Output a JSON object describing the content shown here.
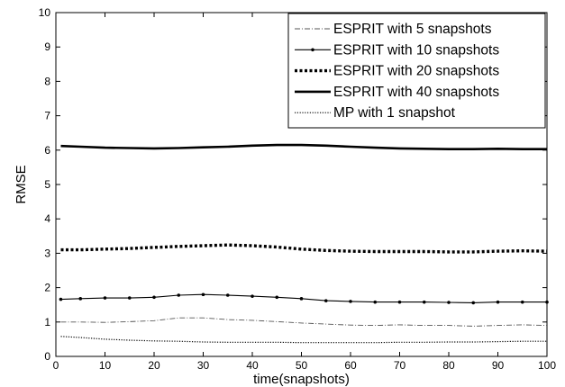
{
  "chart_data": {
    "type": "line",
    "title": "",
    "xlabel": "time(snapshots)",
    "ylabel": "RMSE",
    "xlim": [
      0,
      100
    ],
    "ylim": [
      0,
      10
    ],
    "xticks": [
      "0",
      "10",
      "20",
      "30",
      "40",
      "50",
      "60",
      "70",
      "80",
      "90",
      "100"
    ],
    "yticks": [
      "0",
      "1",
      "2",
      "3",
      "4",
      "5",
      "6",
      "7",
      "8",
      "9",
      "10"
    ],
    "grid": false,
    "legend_position": "top-right",
    "x": [
      1,
      5,
      10,
      15,
      20,
      25,
      30,
      35,
      40,
      45,
      50,
      55,
      60,
      65,
      70,
      75,
      80,
      85,
      90,
      95,
      100
    ],
    "series": [
      {
        "name": "ESPRIT with 5 snapshots",
        "style": "dash-dot",
        "color": "#555555",
        "values": [
          1.0,
          1.0,
          0.99,
          1.01,
          1.04,
          1.12,
          1.12,
          1.07,
          1.05,
          1.01,
          0.97,
          0.94,
          0.91,
          0.9,
          0.92,
          0.9,
          0.9,
          0.88,
          0.9,
          0.92,
          0.9
        ]
      },
      {
        "name": "ESPRIT with 10 snapshots",
        "style": "solid-dots",
        "color": "#000000",
        "values": [
          1.66,
          1.68,
          1.7,
          1.7,
          1.72,
          1.78,
          1.8,
          1.78,
          1.75,
          1.72,
          1.68,
          1.62,
          1.6,
          1.58,
          1.58,
          1.58,
          1.57,
          1.56,
          1.58,
          1.58,
          1.58
        ]
      },
      {
        "name": "ESPRIT with 20 snapshots",
        "style": "thick-dotted",
        "color": "#000000",
        "values": [
          3.1,
          3.1,
          3.12,
          3.14,
          3.17,
          3.2,
          3.22,
          3.24,
          3.22,
          3.18,
          3.12,
          3.08,
          3.06,
          3.05,
          3.05,
          3.05,
          3.04,
          3.04,
          3.06,
          3.07,
          3.06
        ]
      },
      {
        "name": "ESPRIT with 40 snapshots",
        "style": "solid",
        "color": "#000000",
        "values": [
          6.12,
          6.1,
          6.07,
          6.06,
          6.05,
          6.06,
          6.08,
          6.1,
          6.13,
          6.15,
          6.15,
          6.13,
          6.1,
          6.07,
          6.05,
          6.04,
          6.03,
          6.03,
          6.04,
          6.03,
          6.03
        ]
      },
      {
        "name": "MP with 1 snapshot",
        "style": "dotted",
        "color": "#000000",
        "values": [
          0.58,
          0.55,
          0.5,
          0.47,
          0.45,
          0.44,
          0.42,
          0.41,
          0.41,
          0.41,
          0.4,
          0.4,
          0.4,
          0.4,
          0.41,
          0.41,
          0.42,
          0.42,
          0.43,
          0.44,
          0.44
        ]
      }
    ]
  }
}
